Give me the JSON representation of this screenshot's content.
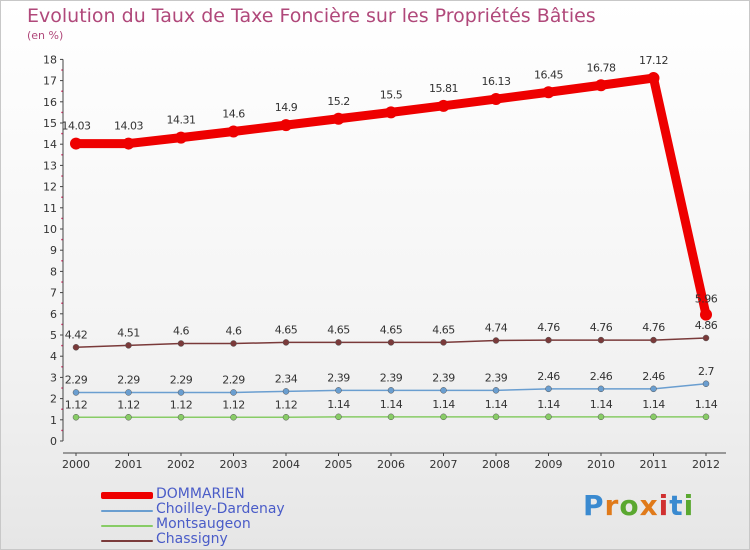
{
  "header": {
    "title": "Evolution du Taux de Taxe Foncière sur les Propriétés Bâties",
    "unit": "(en %)"
  },
  "logo": {
    "text": "Proxiti",
    "letter_colors": [
      "#3a8ad0",
      "#e07a1a",
      "#5aa830",
      "#e07a1a",
      "#d03030",
      "#3a8ad0",
      "#5aa830"
    ]
  },
  "chart_data": {
    "type": "line",
    "title": "Evolution du Taux de Taxe Foncière sur les Propriétés Bâties",
    "ylabel": "(en %)",
    "xlabel": "",
    "ylim": [
      0,
      18
    ],
    "yticks": [
      0,
      1,
      2,
      3,
      4,
      5,
      6,
      7,
      8,
      9,
      10,
      11,
      12,
      13,
      14,
      15,
      16,
      17,
      18
    ],
    "categories": [
      "2000",
      "2001",
      "2002",
      "2003",
      "2004",
      "2005",
      "2006",
      "2007",
      "2008",
      "2009",
      "2010",
      "2011",
      "2012"
    ],
    "series": [
      {
        "name": "DOMMARIEN",
        "color": "#ee0000",
        "values": [
          14.03,
          14.03,
          14.31,
          14.6,
          14.9,
          15.2,
          15.5,
          15.81,
          16.13,
          16.45,
          16.78,
          17.12,
          5.96
        ],
        "labels": [
          "14.03",
          "14.03",
          "14.31",
          "14.6",
          "14.9",
          "15.2",
          "15.5",
          "15.81",
          "16.13",
          "16.45",
          "16.78",
          "17.12",
          "5.96"
        ]
      },
      {
        "name": "Choilley-Dardenay",
        "color": "#6a9ed0",
        "values": [
          2.29,
          2.29,
          2.29,
          2.29,
          2.34,
          2.39,
          2.39,
          2.39,
          2.39,
          2.46,
          2.46,
          2.46,
          2.7
        ],
        "labels": [
          "2.29",
          "2.29",
          "2.29",
          "2.29",
          "2.34",
          "2.39",
          "2.39",
          "2.39",
          "2.39",
          "2.46",
          "2.46",
          "2.46",
          "2.7"
        ]
      },
      {
        "name": "Montsaugeon",
        "color": "#88cc66",
        "values": [
          1.12,
          1.12,
          1.12,
          1.12,
          1.12,
          1.14,
          1.14,
          1.14,
          1.14,
          1.14,
          1.14,
          1.14,
          1.14
        ],
        "labels": [
          "1.12",
          "1.12",
          "1.12",
          "1.12",
          "1.12",
          "1.14",
          "1.14",
          "1.14",
          "1.14",
          "1.14",
          "1.14",
          "1.14",
          "1.14"
        ]
      },
      {
        "name": "Chassigny",
        "color": "#7a3a3a",
        "values": [
          4.42,
          4.51,
          4.6,
          4.6,
          4.65,
          4.65,
          4.65,
          4.65,
          4.74,
          4.76,
          4.76,
          4.76,
          4.86
        ],
        "labels": [
          "4.42",
          "4.51",
          "4.6",
          "4.6",
          "4.65",
          "4.65",
          "4.65",
          "4.65",
          "4.74",
          "4.76",
          "4.76",
          "4.76",
          "4.86"
        ]
      }
    ],
    "legend": [
      "DOMMARIEN",
      "Choilley-Dardenay",
      "Montsaugeon",
      "Chassigny"
    ],
    "legend_position": "bottom-left",
    "grid": false
  }
}
